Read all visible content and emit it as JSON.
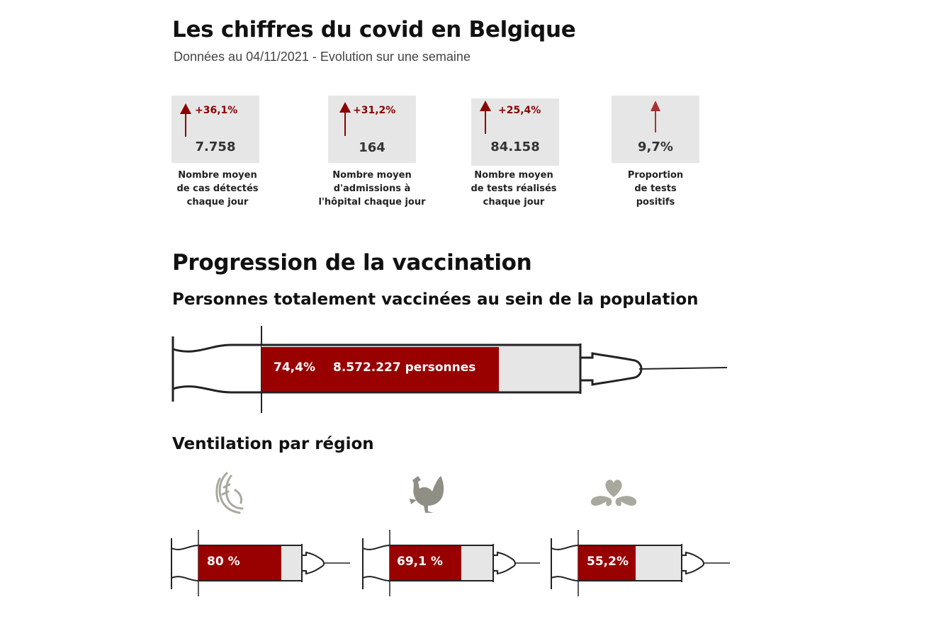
{
  "header": {
    "title": "Les chiffres du covid en Belgique",
    "subtitle": "Données au 04/11/2021 - Evolution sur une semaine"
  },
  "stats": [
    {
      "change": "+36,1%",
      "value": "7.758",
      "label_lines": [
        "Nombre moyen",
        "de cas détectés",
        "chaque jour"
      ],
      "trend": "up"
    },
    {
      "change": "+31,2%",
      "value": "164",
      "label_lines": [
        "Nombre moyen",
        "d'admissions à",
        "l'hôpital chaque jour"
      ],
      "trend": "up"
    },
    {
      "change": "+25,4%",
      "value": "84.158",
      "label_lines": [
        "Nombre moyen",
        "de tests réalisés",
        "chaque jour"
      ],
      "trend": "up"
    },
    {
      "change": "",
      "value": "9,7%",
      "label_lines": [
        "Proportion",
        "de tests",
        "positifs"
      ],
      "trend": "up"
    }
  ],
  "vaccination": {
    "title": "Progression de la vaccination",
    "subtitle": "Personnes totalement vaccinées au sein de la population",
    "national": {
      "percent_label": "74,4%",
      "persons_label": "8.572.227 personnes",
      "fill_fraction": 0.744
    },
    "regions_title": "Ventilation par région",
    "regions": [
      {
        "emblem": "flanders-lion-icon",
        "percent_label": "80 %",
        "fill_fraction": 0.8
      },
      {
        "emblem": "wallonia-rooster-icon",
        "percent_label": "69,1 %",
        "fill_fraction": 0.691
      },
      {
        "emblem": "brussels-iris-icon",
        "percent_label": "55,2%",
        "fill_fraction": 0.552
      }
    ]
  },
  "colors": {
    "accent": "#990000",
    "arrow": "#8b0000",
    "arrow_light": "#a83232",
    "card_bg": "#e6e6e6",
    "empty": "#e6e6e6",
    "emblem": "#a8a89e"
  }
}
